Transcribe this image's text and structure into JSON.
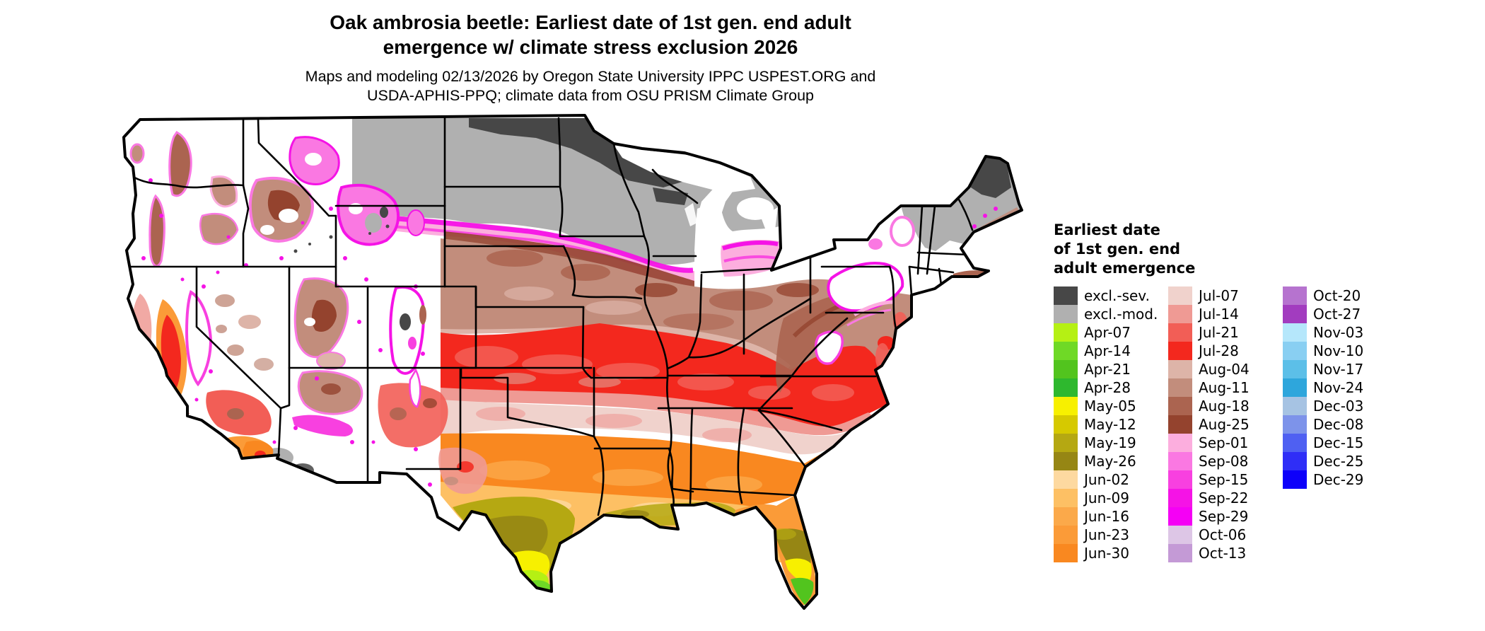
{
  "header": {
    "title_line1": "Oak ambrosia beetle: Earliest date of 1st gen. end adult",
    "title_line2": "emergence w/ climate stress exclusion 2026",
    "subtitle_line1": "Maps and modeling 02/13/2026 by Oregon State University IPPC USPEST.ORG and",
    "subtitle_line2": "USDA-APHIS-PPQ; climate data from OSU PRISM Climate Group"
  },
  "legend": {
    "title_lines": [
      "Earliest date",
      "of 1st gen. end",
      "adult emergence"
    ],
    "columns": [
      [
        {
          "label": "excl.-sev.",
          "color": "#474747"
        },
        {
          "label": "excl.-mod.",
          "color": "#b0b0b0"
        },
        {
          "label": "Apr-07",
          "color": "#b5f014"
        },
        {
          "label": "Apr-14",
          "color": "#6fd926"
        },
        {
          "label": "Apr-21",
          "color": "#52c41e"
        },
        {
          "label": "Apr-28",
          "color": "#2eb82e"
        },
        {
          "label": "May-05",
          "color": "#f7f000"
        },
        {
          "label": "May-12",
          "color": "#d6c900"
        },
        {
          "label": "May-19",
          "color": "#b5a812"
        },
        {
          "label": "May-26",
          "color": "#968614"
        },
        {
          "label": "Jun-02",
          "color": "#fdd9a0"
        },
        {
          "label": "Jun-09",
          "color": "#fdc064"
        },
        {
          "label": "Jun-16",
          "color": "#fba94a"
        },
        {
          "label": "Jun-23",
          "color": "#fb9b38"
        },
        {
          "label": "Jun-30",
          "color": "#f98820"
        }
      ],
      [
        {
          "label": "Jul-07",
          "color": "#f0d2cc"
        },
        {
          "label": "Jul-14",
          "color": "#ef9a94"
        },
        {
          "label": "Jul-21",
          "color": "#f25e56"
        },
        {
          "label": "Jul-28",
          "color": "#f3281e"
        },
        {
          "label": "Aug-04",
          "color": "#ddb4a8"
        },
        {
          "label": "Aug-11",
          "color": "#c28d7c"
        },
        {
          "label": "Aug-18",
          "color": "#ab6450"
        },
        {
          "label": "Aug-25",
          "color": "#94432e"
        },
        {
          "label": "Sep-01",
          "color": "#fcaede"
        },
        {
          "label": "Sep-08",
          "color": "#fa78e2"
        },
        {
          "label": "Sep-15",
          "color": "#f840e0"
        },
        {
          "label": "Sep-22",
          "color": "#f513e6"
        },
        {
          "label": "Sep-29",
          "color": "#f500f5"
        },
        {
          "label": "Oct-06",
          "color": "#ddc6e6"
        },
        {
          "label": "Oct-13",
          "color": "#c49ad6"
        }
      ],
      [
        {
          "label": "Oct-20",
          "color": "#b673cf"
        },
        {
          "label": "Oct-27",
          "color": "#a23cbf"
        },
        {
          "label": "Nov-03",
          "color": "#b5e7fb"
        },
        {
          "label": "Nov-10",
          "color": "#89cff2"
        },
        {
          "label": "Nov-17",
          "color": "#5cbfe8"
        },
        {
          "label": "Nov-24",
          "color": "#2ea6dc"
        },
        {
          "label": "Dec-03",
          "color": "#a6c3e3"
        },
        {
          "label": "Dec-08",
          "color": "#7d93ea"
        },
        {
          "label": "Dec-15",
          "color": "#4f60f2"
        },
        {
          "label": "Dec-25",
          "color": "#2f2ef7"
        },
        {
          "label": "Dec-29",
          "color": "#0d00fa"
        }
      ]
    ]
  },
  "map": {
    "region": "Continental United States",
    "land_base": "#ffffff",
    "border_color": "#000000"
  },
  "chart_data": {
    "type": "heatmap",
    "title": "Oak ambrosia beetle: Earliest date of 1st gen. end adult emergence w/ climate stress exclusion 2026",
    "categories": [
      "excl.-sev.",
      "excl.-mod.",
      "Apr-07",
      "Apr-14",
      "Apr-21",
      "Apr-28",
      "May-05",
      "May-12",
      "May-19",
      "May-26",
      "Jun-02",
      "Jun-09",
      "Jun-16",
      "Jun-23",
      "Jun-30",
      "Jul-07",
      "Jul-14",
      "Jul-21",
      "Jul-28",
      "Aug-04",
      "Aug-11",
      "Aug-18",
      "Aug-25",
      "Sep-01",
      "Sep-08",
      "Sep-15",
      "Sep-22",
      "Sep-29",
      "Oct-06",
      "Oct-13",
      "Oct-20",
      "Oct-27",
      "Nov-03",
      "Nov-10",
      "Nov-17",
      "Nov-24",
      "Dec-03",
      "Dec-08",
      "Dec-15",
      "Dec-25",
      "Dec-29"
    ],
    "legend_position": "right",
    "visible_region_examples": [
      {
        "region": "northern Minnesota / northern North Dakota",
        "category": "excl.-sev."
      },
      {
        "region": "eastern Montana, Wisconsin, northern Michigan, northern New England",
        "category": "excl.-mod."
      },
      {
        "region": "South Dakota–southern Michigan transition band",
        "category": "Sep-08 to Sep-29 (magenta)"
      },
      {
        "region": "Nebraska, Iowa, Illinois, Ohio, Pennsylvania, Appalachians",
        "category": "Aug-04 to Aug-25 (browns)"
      },
      {
        "region": "Kansas, Missouri, Kentucky, Virginia piedmont",
        "category": "Jul-21 / Jul-28 (reds)"
      },
      {
        "region": "Oklahoma, Arkansas, Tennessee",
        "category": "Jul-07 / Jul-14 (pale pinks)"
      },
      {
        "region": "northern Texas, Louisiana, Mississippi, Alabama, Georgia",
        "category": "Jun-16 to Jun-30 (oranges)"
      },
      {
        "region": "central Texas and Gulf coast",
        "category": "Jun-02 / Jun-09 and May-19 / May-26"
      },
      {
        "region": "south Texas and central Florida",
        "category": "May-05 (yellow)"
      },
      {
        "region": "Rio Grande Valley tip and south Florida",
        "category": "Apr-07 to Apr-28 (greens)"
      },
      {
        "region": "mountain West (Rockies, Sierra, Cascades)",
        "category": "white with Sep (magenta) fringes and Aug (brown) patches"
      },
      {
        "region": "California Central Valley",
        "category": "Jun-23 ring with Jul-28 interior"
      },
      {
        "region": "south-central Arizona",
        "category": "excl.-mod. / excl.-sev. patches"
      }
    ]
  }
}
